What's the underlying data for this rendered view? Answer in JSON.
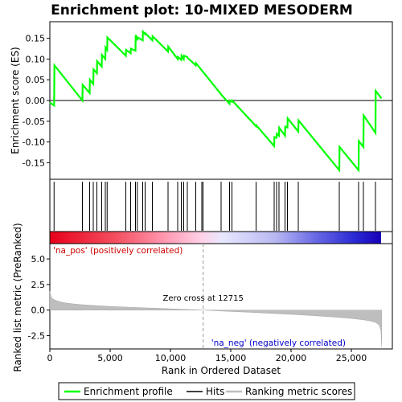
{
  "chart_data": {
    "type": "line",
    "title": "Enrichment plot: 10-MIXED MESODERM",
    "top_panel": {
      "ylabel": "Enrichment score (ES)",
      "ylim": [
        -0.19,
        0.19
      ],
      "yticks": [
        -0.15,
        -0.1,
        -0.05,
        0.0,
        0.05,
        0.1,
        0.15
      ],
      "ytick_labels": [
        "-0.15",
        "-0.10",
        "-0.05",
        "0.00",
        "0.05",
        "0.10",
        "0.15"
      ],
      "series": [
        {
          "name": "Enrichment profile",
          "color": "#00ff00",
          "x": [
            0,
            350,
            380,
            2700,
            2720,
            3300,
            3320,
            3600,
            3620,
            3900,
            3920,
            4300,
            4320,
            4600,
            4620,
            4750,
            4770,
            6300,
            6320,
            6700,
            6720,
            7100,
            7120,
            7250,
            7270,
            7700,
            7720,
            7900,
            7920,
            8500,
            8520,
            9800,
            9820,
            10600,
            10620,
            10900,
            10920,
            11100,
            11120,
            11400,
            11420,
            12100,
            12120,
            14200,
            14220,
            14900,
            14920,
            15100,
            15120,
            17100,
            17120,
            18600,
            18620,
            18800,
            18820,
            19000,
            19020,
            19500,
            19520,
            19700,
            19720,
            20600,
            20620,
            24000,
            24020,
            25600,
            25620,
            26000,
            26020,
            27000,
            27020,
            27500
          ],
          "y": [
            -0.005,
            -0.012,
            0.085,
            0.0,
            0.038,
            0.018,
            0.05,
            0.04,
            0.075,
            0.066,
            0.095,
            0.082,
            0.11,
            0.1,
            0.128,
            0.122,
            0.152,
            0.108,
            0.122,
            0.114,
            0.125,
            0.12,
            0.158,
            0.145,
            0.152,
            0.145,
            0.166,
            0.16,
            0.162,
            0.145,
            0.155,
            0.118,
            0.13,
            0.1,
            0.105,
            0.098,
            0.108,
            0.1,
            0.108,
            0.105,
            0.103,
            0.085,
            0.09,
            0.015,
            0.014,
            -0.008,
            0.0,
            -0.003,
            0.0,
            -0.062,
            -0.06,
            -0.11,
            -0.088,
            -0.09,
            -0.08,
            -0.085,
            -0.066,
            -0.085,
            -0.063,
            -0.065,
            -0.043,
            -0.075,
            -0.048,
            -0.168,
            -0.112,
            -0.168,
            -0.098,
            -0.112,
            -0.036,
            -0.078,
            0.023,
            0.005
          ]
        }
      ]
    },
    "hits_x": [
      350,
      2700,
      3300,
      3600,
      3900,
      4300,
      4600,
      4750,
      6300,
      6700,
      7100,
      7250,
      7700,
      7900,
      8500,
      9800,
      10600,
      10900,
      11100,
      11400,
      12100,
      12600,
      12700,
      14200,
      14900,
      15100,
      17100,
      18600,
      18800,
      19000,
      19500,
      19700,
      20600,
      24000,
      25600,
      26000,
      27000
    ],
    "metric_panel": {
      "ylabel": "Ranked list metric (PreRanked)",
      "ylim": [
        -3.8,
        6.5
      ],
      "yticks": [
        -2.5,
        0.0,
        2.5,
        5.0
      ],
      "ytick_labels": [
        "-2.5",
        "0.0",
        "2.5",
        "5.0"
      ],
      "pos_label": "'na_pos' (positively correlated)",
      "neg_label": "'na_neg' (negatively correlated)",
      "zero_cross_label": "Zero cross at 12715",
      "zero_cross_x": 12715,
      "metric_x": [
        0,
        50,
        150,
        300,
        500,
        800,
        1200,
        1800,
        2500,
        3500,
        5000,
        7000,
        9000,
        11000,
        12715,
        14000,
        16000,
        18000,
        20000,
        22000,
        24000,
        25000,
        26000,
        26500,
        27000,
        27300,
        27450,
        27520
      ],
      "metric_y": [
        1.85,
        1.5,
        1.2,
        1.05,
        0.95,
        0.82,
        0.72,
        0.62,
        0.54,
        0.46,
        0.36,
        0.26,
        0.17,
        0.08,
        0.0,
        -0.08,
        -0.18,
        -0.3,
        -0.42,
        -0.55,
        -0.72,
        -0.82,
        -0.95,
        -1.05,
        -1.2,
        -1.45,
        -2.0,
        -3.6
      ]
    },
    "xlabel": "Rank in Ordered Dataset",
    "xlim": [
      0,
      28400
    ],
    "xticks": [
      0,
      5000,
      10000,
      15000,
      20000,
      25000
    ],
    "xtick_labels": [
      "0",
      "5,000",
      "10,000",
      "15,000",
      "20,000",
      "25,000"
    ],
    "legend": {
      "placement": "bottom",
      "entries": [
        "Enrichment profile",
        "Hits",
        "Ranking metric scores"
      ],
      "colors": [
        "#00ff00",
        "#000000",
        "#bebebe"
      ]
    }
  }
}
